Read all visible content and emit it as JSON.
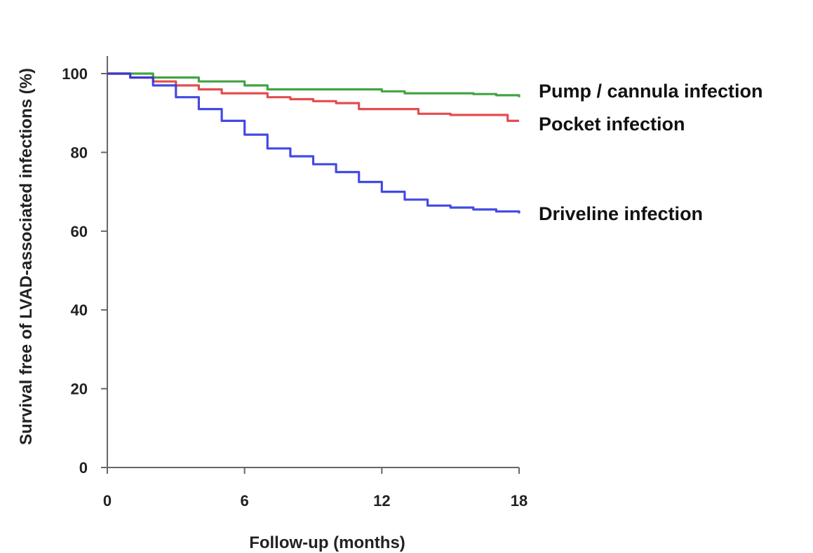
{
  "chart_data": {
    "type": "line",
    "title": "",
    "xlabel": "Follow-up (months)",
    "ylabel": "Survival free of LVAD-associated infections (%)",
    "xlim": [
      0,
      18
    ],
    "ylim": [
      0,
      100
    ],
    "xticks": [
      "0",
      "6",
      "12",
      "18"
    ],
    "yticks": [
      "0",
      "20",
      "40",
      "60",
      "80",
      "100"
    ],
    "grid": false,
    "legend": "right-of-lines",
    "series": [
      {
        "name": "Pump / cannula infection",
        "color": "#2e9a2e",
        "x": [
          0,
          2,
          4,
          6,
          7,
          10,
          12,
          13,
          14,
          16,
          17,
          18
        ],
        "y": [
          100,
          99,
          98,
          97,
          96,
          96,
          95.5,
          95,
          95,
          94.8,
          94.5,
          94
        ]
      },
      {
        "name": "Pocket infection",
        "color": "#e03a3a",
        "x": [
          0,
          1,
          2,
          3,
          4,
          5,
          6,
          7,
          8,
          9,
          10,
          11,
          12,
          13,
          13.6,
          15,
          16,
          17,
          17.5,
          18
        ],
        "y": [
          100,
          99,
          98,
          97,
          96,
          95,
          95,
          94,
          93.5,
          93,
          92.5,
          91,
          91,
          91,
          89.8,
          89.5,
          89.5,
          89.5,
          88,
          88
        ]
      },
      {
        "name": "Driveline infection",
        "color": "#2f36e0",
        "x": [
          0,
          1,
          2,
          3,
          4,
          5,
          6,
          7,
          8,
          9,
          10,
          11,
          12,
          13,
          14,
          15,
          16,
          17,
          18
        ],
        "y": [
          100,
          99,
          97,
          94,
          91,
          88,
          84.5,
          81,
          79,
          77,
          75,
          72.5,
          70,
          68,
          66.5,
          66,
          65.5,
          65,
          64.5
        ]
      }
    ]
  }
}
